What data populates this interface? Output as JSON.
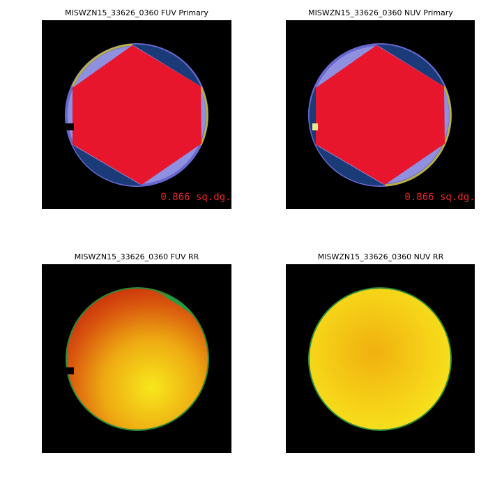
{
  "panels": [
    {
      "title": "MISWZN15_33626_0360 FUV Primary",
      "annotation": "0.866 sq.dg."
    },
    {
      "title": "MISWZN15_33626_0360 NUV Primary",
      "annotation": "0.866 sq.dg."
    },
    {
      "title": "MISWZN15_33626_0360 FUV RR"
    },
    {
      "title": "MISWZN15_33626_0360 NUV RR"
    }
  ]
}
